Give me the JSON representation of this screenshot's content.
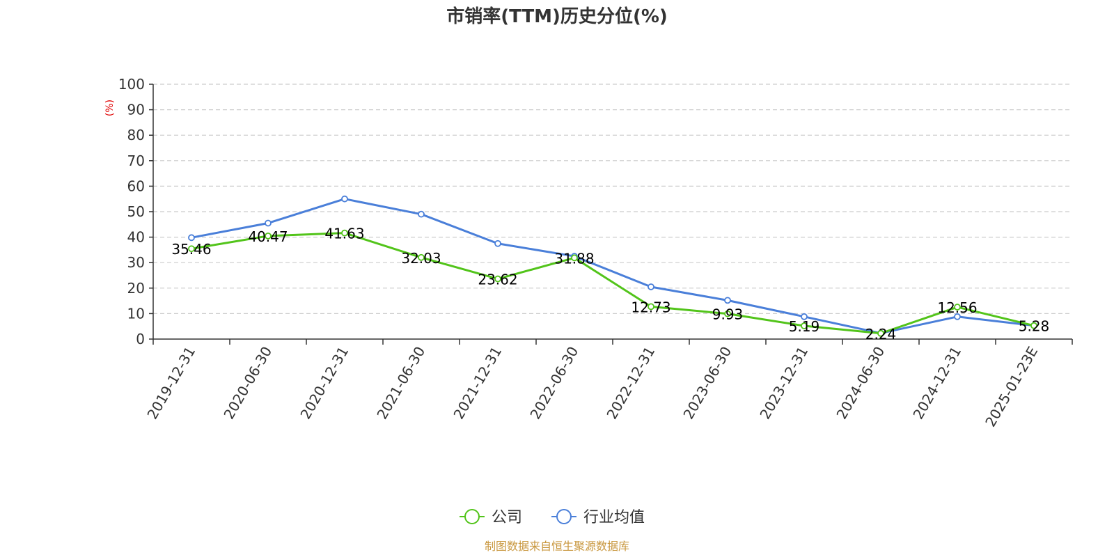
{
  "chart_data": {
    "type": "line",
    "title": "市销率(TTM)历史分位(%)",
    "ylabel": "(%)",
    "ylim": [
      0,
      100
    ],
    "yticks": [
      0,
      10,
      20,
      30,
      40,
      50,
      60,
      70,
      80,
      90,
      100
    ],
    "categories": [
      "2019-12-31",
      "2020-06-30",
      "2020-12-31",
      "2021-06-30",
      "2021-12-31",
      "2022-06-30",
      "2022-12-31",
      "2023-06-30",
      "2023-12-31",
      "2024-06-30",
      "2024-12-31",
      "2025-01-23E"
    ],
    "grid": true,
    "legend_position": "bottom-center",
    "series": [
      {
        "name": "公司",
        "color": "#52c41a",
        "values": [
          35.46,
          40.47,
          41.63,
          32.03,
          23.62,
          31.88,
          12.73,
          9.93,
          5.19,
          2.24,
          12.56,
          5.28
        ],
        "labels": [
          "35.46",
          "40.47",
          "41.63",
          "32.03",
          "23.62",
          "31.88",
          "12.73",
          "9.93",
          "5.19",
          "2.24",
          "12.56",
          "5.28"
        ]
      },
      {
        "name": "行业均值",
        "color": "#4a7fd9",
        "values": [
          39.8,
          45.5,
          55.0,
          49.0,
          37.5,
          32.5,
          20.5,
          15.2,
          8.8,
          2.3,
          8.8,
          5.3
        ]
      }
    ],
    "source": "制图数据来自恒生聚源数据库"
  }
}
